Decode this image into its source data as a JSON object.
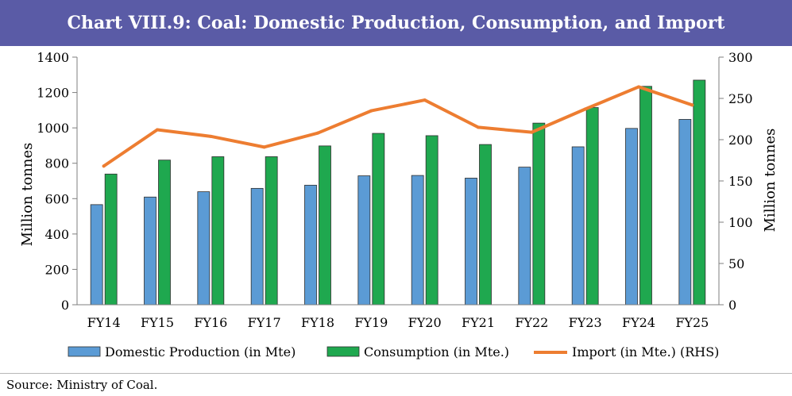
{
  "title": "Chart VIII.9: Coal: Domestic Production, Consumption, and Import",
  "source": "Source: Ministry of Coal.",
  "colors": {
    "title_bg": "#5a5ba6",
    "production": "#5b9bd5",
    "consumption": "#1fa84f",
    "import": "#ed7d31"
  },
  "chart_data": {
    "type": "bar",
    "title": "Chart VIII.9: Coal: Domestic Production, Consumption, and Import",
    "categories": [
      "FY14",
      "FY15",
      "FY16",
      "FY17",
      "FY18",
      "FY19",
      "FY20",
      "FY21",
      "FY22",
      "FY23",
      "FY24",
      "FY25"
    ],
    "series": [
      {
        "name": "Domestic Production (in Mte)",
        "type": "bar",
        "axis": "left",
        "values": [
          566,
          609,
          639,
          658,
          676,
          729,
          731,
          716,
          778,
          893,
          997,
          1048
        ]
      },
      {
        "name": "Consumption (in Mte.)",
        "type": "bar",
        "axis": "left",
        "values": [
          739,
          818,
          837,
          837,
          898,
          969,
          956,
          906,
          1027,
          1115,
          1235,
          1270
        ]
      },
      {
        "name": "Import (in Mte.) (RHS)",
        "type": "line",
        "axis": "right",
        "values": [
          168,
          212,
          204,
          191,
          208,
          235,
          248,
          215,
          209,
          237,
          264,
          242
        ]
      }
    ],
    "ylabel": "Million tonnes",
    "ylabel_right": "Million tonnes",
    "ylim": [
      0,
      1400
    ],
    "ylim_right": [
      0,
      300
    ],
    "yticks": [
      "0",
      "200",
      "400",
      "600",
      "800",
      "1000",
      "1200",
      "1400"
    ],
    "yticks_right": [
      "0",
      "50",
      "100",
      "150",
      "200",
      "250",
      "300"
    ],
    "legend_position": "bottom"
  }
}
